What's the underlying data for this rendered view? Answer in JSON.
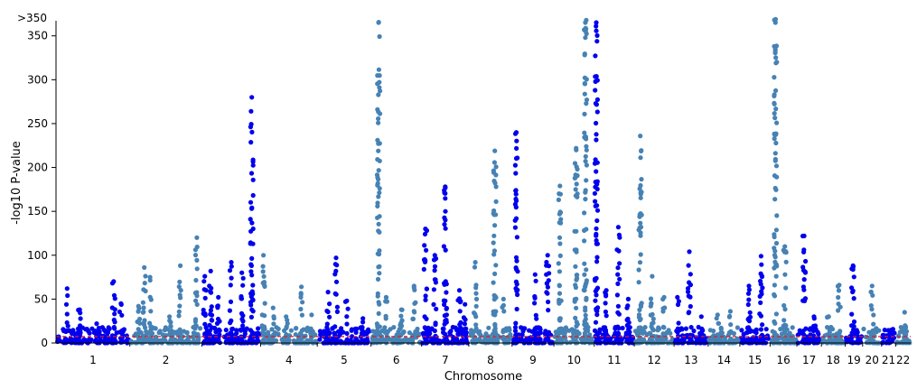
{
  "chart_data": {
    "type": "scatter",
    "subtype": "manhattan",
    "xlabel": "Chromosome",
    "ylabel": "-log10 P-value",
    "ylim": [
      0,
      360
    ],
    "y_ticks": [
      0,
      50,
      100,
      150,
      200,
      250,
      300,
      350
    ],
    "y_cap_label": ">350",
    "y_cap_value": 370,
    "significance_line": {
      "value": 7.3,
      "color": "#e41a1c",
      "style": "dashed"
    },
    "colors": {
      "odd": "#0000ee",
      "even": "#4682b4"
    },
    "grid": false,
    "legend": "none",
    "chromosomes": [
      {
        "label": "1",
        "length": 249,
        "peaks": [
          {
            "pos": 0.15,
            "y": 62
          },
          {
            "pos": 0.32,
            "y": 38
          },
          {
            "pos": 0.55,
            "y": 22
          },
          {
            "pos": 0.78,
            "y": 70
          },
          {
            "pos": 0.88,
            "y": 45
          }
        ]
      },
      {
        "label": "2",
        "length": 243,
        "peaks": [
          {
            "pos": 0.12,
            "y": 42
          },
          {
            "pos": 0.2,
            "y": 86
          },
          {
            "pos": 0.28,
            "y": 75
          },
          {
            "pos": 0.55,
            "y": 30
          },
          {
            "pos": 0.7,
            "y": 88
          },
          {
            "pos": 0.93,
            "y": 120
          }
        ]
      },
      {
        "label": "3",
        "length": 198,
        "peaks": [
          {
            "pos": 0.05,
            "y": 76
          },
          {
            "pos": 0.15,
            "y": 82
          },
          {
            "pos": 0.28,
            "y": 52
          },
          {
            "pos": 0.5,
            "y": 92
          },
          {
            "pos": 0.68,
            "y": 80
          },
          {
            "pos": 0.85,
            "y": 280
          }
        ]
      },
      {
        "label": "4",
        "length": 191,
        "peaks": [
          {
            "pos": 0.05,
            "y": 100
          },
          {
            "pos": 0.22,
            "y": 40
          },
          {
            "pos": 0.45,
            "y": 30
          },
          {
            "pos": 0.72,
            "y": 64
          },
          {
            "pos": 0.9,
            "y": 32
          }
        ]
      },
      {
        "label": "5",
        "length": 181,
        "peaks": [
          {
            "pos": 0.2,
            "y": 58
          },
          {
            "pos": 0.35,
            "y": 97
          },
          {
            "pos": 0.55,
            "y": 48
          },
          {
            "pos": 0.85,
            "y": 28
          }
        ]
      },
      {
        "label": "6",
        "length": 171,
        "peaks": [
          {
            "pos": 0.15,
            "y": 370
          },
          {
            "pos": 0.3,
            "y": 52
          },
          {
            "pos": 0.6,
            "y": 38
          },
          {
            "pos": 0.85,
            "y": 65
          }
        ]
      },
      {
        "label": "7",
        "length": 159,
        "peaks": [
          {
            "pos": 0.08,
            "y": 130
          },
          {
            "pos": 0.28,
            "y": 100
          },
          {
            "pos": 0.5,
            "y": 178
          },
          {
            "pos": 0.8,
            "y": 60
          },
          {
            "pos": 0.92,
            "y": 44
          }
        ]
      },
      {
        "label": "8",
        "length": 146,
        "peaks": [
          {
            "pos": 0.15,
            "y": 92
          },
          {
            "pos": 0.6,
            "y": 219
          },
          {
            "pos": 0.8,
            "y": 50
          }
        ]
      },
      {
        "label": "9",
        "length": 141,
        "peaks": [
          {
            "pos": 0.1,
            "y": 240
          },
          {
            "pos": 0.55,
            "y": 78
          },
          {
            "pos": 0.85,
            "y": 100
          }
        ]
      },
      {
        "label": "10",
        "length": 136,
        "peaks": [
          {
            "pos": 0.15,
            "y": 179
          },
          {
            "pos": 0.55,
            "y": 222
          },
          {
            "pos": 0.78,
            "y": 370
          }
        ]
      },
      {
        "label": "11",
        "length": 135,
        "peaks": [
          {
            "pos": 0.05,
            "y": 370
          },
          {
            "pos": 0.3,
            "y": 60
          },
          {
            "pos": 0.6,
            "y": 132
          },
          {
            "pos": 0.85,
            "y": 50
          }
        ]
      },
      {
        "label": "12",
        "length": 134,
        "peaks": [
          {
            "pos": 0.15,
            "y": 236
          },
          {
            "pos": 0.45,
            "y": 76
          },
          {
            "pos": 0.75,
            "y": 52
          }
        ]
      },
      {
        "label": "13",
        "length": 115,
        "peaks": [
          {
            "pos": 0.1,
            "y": 52
          },
          {
            "pos": 0.45,
            "y": 104
          },
          {
            "pos": 0.8,
            "y": 30
          }
        ]
      },
      {
        "label": "14",
        "length": 107,
        "peaks": [
          {
            "pos": 0.3,
            "y": 32
          },
          {
            "pos": 0.7,
            "y": 36
          }
        ]
      },
      {
        "label": "15",
        "length": 102,
        "peaks": [
          {
            "pos": 0.3,
            "y": 65
          },
          {
            "pos": 0.7,
            "y": 99
          }
        ]
      },
      {
        "label": "16",
        "length": 90,
        "peaks": [
          {
            "pos": 0.2,
            "y": 370
          },
          {
            "pos": 0.55,
            "y": 110
          }
        ]
      },
      {
        "label": "17",
        "length": 83,
        "peaks": [
          {
            "pos": 0.3,
            "y": 122
          },
          {
            "pos": 0.7,
            "y": 30
          }
        ]
      },
      {
        "label": "18",
        "length": 80,
        "peaks": [
          {
            "pos": 0.3,
            "y": 30
          },
          {
            "pos": 0.75,
            "y": 66
          }
        ]
      },
      {
        "label": "19",
        "length": 59,
        "peaks": [
          {
            "pos": 0.45,
            "y": 88
          }
        ]
      },
      {
        "label": "20",
        "length": 64,
        "peaks": [
          {
            "pos": 0.5,
            "y": 65
          }
        ]
      },
      {
        "label": "21",
        "length": 47,
        "peaks": [
          {
            "pos": 0.6,
            "y": 12
          }
        ]
      },
      {
        "label": "22",
        "length": 51,
        "peaks": [
          {
            "pos": 0.6,
            "y": 35
          }
        ]
      }
    ]
  }
}
